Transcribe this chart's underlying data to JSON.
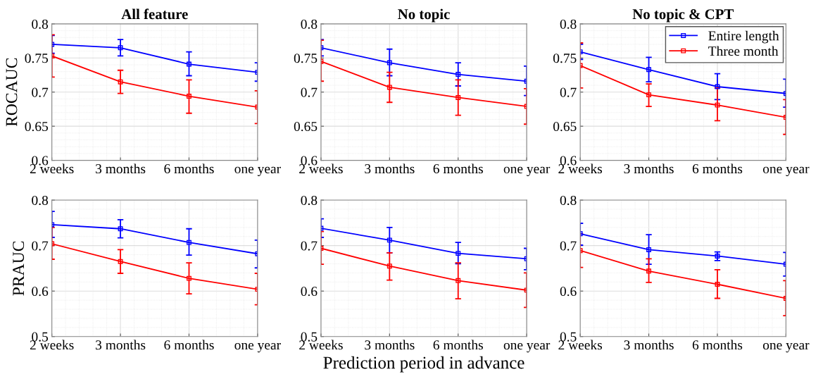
{
  "chart_data": [
    {
      "type": "line",
      "title": "All feature",
      "ylabel": "ROCAUC",
      "categories": [
        "2 weeks",
        "3 months",
        "6 months",
        "one year"
      ],
      "ylim": [
        0.6,
        0.8
      ],
      "yticks": [
        0.6,
        0.65,
        0.7,
        0.75,
        0.8
      ],
      "grid": true,
      "marker": "square",
      "line_style": "solid",
      "legend": false,
      "series": [
        {
          "color": "#0000ff",
          "values": [
            0.77,
            0.765,
            0.741,
            0.729
          ],
          "errors": [
            [
              0.757,
              0.783
            ],
            [
              0.753,
              0.777
            ],
            [
              0.724,
              0.759
            ],
            [
              0.716,
              0.743
            ]
          ]
        },
        {
          "color": "#ff0000",
          "values": [
            0.753,
            0.715,
            0.694,
            0.678
          ],
          "errors": [
            [
              0.722,
              0.784
            ],
            [
              0.698,
              0.732
            ],
            [
              0.669,
              0.718
            ],
            [
              0.654,
              0.702
            ]
          ]
        }
      ]
    },
    {
      "type": "line",
      "title": "No topic",
      "categories": [
        "2 weeks",
        "3 months",
        "6 months",
        "one year"
      ],
      "ylim": [
        0.6,
        0.8
      ],
      "yticks": [
        0.6,
        0.65,
        0.7,
        0.75,
        0.8
      ],
      "grid": true,
      "marker": "square",
      "line_style": "solid",
      "legend": false,
      "series": [
        {
          "color": "#0000ff",
          "values": [
            0.765,
            0.743,
            0.726,
            0.716
          ],
          "errors": [
            [
              0.753,
              0.777
            ],
            [
              0.724,
              0.763
            ],
            [
              0.709,
              0.743
            ],
            [
              0.695,
              0.738
            ]
          ]
        },
        {
          "color": "#ff0000",
          "values": [
            0.745,
            0.707,
            0.692,
            0.679
          ],
          "errors": [
            [
              0.716,
              0.776
            ],
            [
              0.685,
              0.729
            ],
            [
              0.666,
              0.718
            ],
            [
              0.653,
              0.705
            ]
          ]
        }
      ]
    },
    {
      "type": "line",
      "title": "No topic & CPT",
      "categories": [
        "2 weeks",
        "3 months",
        "6 months",
        "one year"
      ],
      "ylim": [
        0.6,
        0.8
      ],
      "yticks": [
        0.6,
        0.65,
        0.7,
        0.75,
        0.8
      ],
      "grid": true,
      "marker": "square",
      "line_style": "solid",
      "legend": "top right",
      "series": [
        {
          "name": "Entire length",
          "color": "#0000ff",
          "values": [
            0.759,
            0.733,
            0.708,
            0.698
          ],
          "errors": [
            [
              0.748,
              0.77
            ],
            [
              0.715,
              0.751
            ],
            [
              0.689,
              0.727
            ],
            [
              0.678,
              0.719
            ]
          ]
        },
        {
          "name": "Three month",
          "color": "#ff0000",
          "values": [
            0.739,
            0.696,
            0.681,
            0.663
          ],
          "errors": [
            [
              0.706,
              0.772
            ],
            [
              0.679,
              0.712
            ],
            [
              0.658,
              0.706
            ],
            [
              0.638,
              0.689
            ]
          ]
        }
      ]
    },
    {
      "type": "line",
      "ylabel": "PRAUC",
      "categories": [
        "2 weeks",
        "3 months",
        "6 months",
        "one year"
      ],
      "ylim": [
        0.5,
        0.8
      ],
      "yticks": [
        0.5,
        0.6,
        0.7,
        0.8
      ],
      "grid": true,
      "marker": "square",
      "line_style": "solid",
      "legend": false,
      "series": [
        {
          "color": "#0000ff",
          "values": [
            0.746,
            0.737,
            0.707,
            0.682
          ],
          "errors": [
            [
              0.718,
              0.775
            ],
            [
              0.717,
              0.757
            ],
            [
              0.679,
              0.737
            ],
            [
              0.651,
              0.712
            ]
          ]
        },
        {
          "color": "#ff0000",
          "values": [
            0.704,
            0.665,
            0.628,
            0.604
          ],
          "errors": [
            [
              0.67,
              0.74
            ],
            [
              0.639,
              0.691
            ],
            [
              0.594,
              0.662
            ],
            [
              0.57,
              0.639
            ]
          ]
        }
      ]
    },
    {
      "type": "line",
      "xlabel": "Prediction period in advance",
      "categories": [
        "2 weeks",
        "3 months",
        "6 months",
        "one year"
      ],
      "ylim": [
        0.5,
        0.8
      ],
      "yticks": [
        0.5,
        0.6,
        0.7,
        0.8
      ],
      "grid": true,
      "marker": "square",
      "line_style": "solid",
      "legend": false,
      "series": [
        {
          "color": "#0000ff",
          "values": [
            0.738,
            0.712,
            0.683,
            0.671
          ],
          "errors": [
            [
              0.718,
              0.759
            ],
            [
              0.684,
              0.74
            ],
            [
              0.66,
              0.707
            ],
            [
              0.647,
              0.694
            ]
          ]
        },
        {
          "color": "#ff0000",
          "values": [
            0.694,
            0.655,
            0.623,
            0.602
          ],
          "errors": [
            [
              0.659,
              0.731
            ],
            [
              0.624,
              0.684
            ],
            [
              0.583,
              0.662
            ],
            [
              0.564,
              0.64
            ]
          ]
        }
      ]
    },
    {
      "type": "line",
      "categories": [
        "2 weeks",
        "3 months",
        "6 months",
        "one year"
      ],
      "ylim": [
        0.5,
        0.8
      ],
      "yticks": [
        0.5,
        0.6,
        0.7,
        0.8
      ],
      "grid": true,
      "marker": "square",
      "line_style": "solid",
      "legend": false,
      "series": [
        {
          "color": "#0000ff",
          "values": [
            0.726,
            0.691,
            0.677,
            0.659
          ],
          "errors": [
            [
              0.701,
              0.749
            ],
            [
              0.659,
              0.724
            ],
            [
              0.667,
              0.686
            ],
            [
              0.633,
              0.685
            ]
          ]
        },
        {
          "color": "#ff0000",
          "values": [
            0.689,
            0.644,
            0.615,
            0.584
          ],
          "errors": [
            [
              0.652,
              0.726
            ],
            [
              0.619,
              0.671
            ],
            [
              0.584,
              0.647
            ],
            [
              0.546,
              0.623
            ]
          ]
        }
      ]
    }
  ]
}
